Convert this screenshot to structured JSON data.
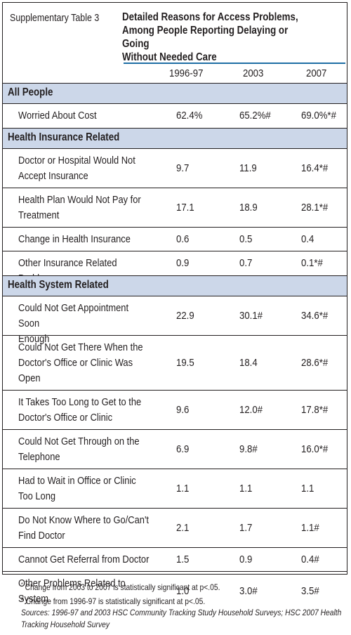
{
  "table_label": "Supplementary Table 3",
  "title_lines": [
    "Detailed Reasons for Access Problems,",
    "Among People Reporting Delaying or Going",
    "Without Needed Care"
  ],
  "columns": [
    "1996-97",
    "2003",
    "2007"
  ],
  "sections": [
    {
      "title": "All People",
      "rows": [
        {
          "lines": [
            "Worried About Cost"
          ],
          "values": [
            "62.4%",
            "65.2%#",
            "69.0%*#"
          ]
        }
      ]
    },
    {
      "title": "Health Insurance Related",
      "rows": [
        {
          "lines": [
            "Doctor or Hospital Would Not",
            "Accept Insurance"
          ],
          "values": [
            "9.7",
            "11.9",
            "16.4*#"
          ]
        },
        {
          "lines": [
            "Health Plan Would Not Pay for",
            "Treatment"
          ],
          "values": [
            "17.1",
            "18.9",
            "28.1*#"
          ]
        },
        {
          "lines": [
            "Change in Health Insurance"
          ],
          "values": [
            "0.6",
            "0.5",
            "0.4"
          ]
        },
        {
          "lines": [
            "Other Insurance Related Problem"
          ],
          "values": [
            "0.9",
            "0.7",
            "0.1*#"
          ]
        }
      ]
    },
    {
      "title": "Health System Related",
      "rows": [
        {
          "lines": [
            "Could Not Get Appointment Soon",
            "Enough"
          ],
          "values": [
            "22.9",
            "30.1#",
            "34.6*#"
          ]
        },
        {
          "lines": [
            "Could Not Get There When the",
            "Doctor's Office or Clinic Was",
            "Open"
          ],
          "values": [
            "19.5",
            "18.4",
            "28.6*#"
          ]
        },
        {
          "lines": [
            "It Takes Too Long to Get to the",
            "Doctor's Office or Clinic"
          ],
          "values": [
            "9.6",
            "12.0#",
            "17.8*#"
          ]
        },
        {
          "lines": [
            "Could Not Get Through on the",
            "Telephone"
          ],
          "values": [
            "6.9",
            "9.8#",
            "16.0*#"
          ]
        },
        {
          "lines": [
            "Had to Wait in Office or Clinic",
            "Too Long"
          ],
          "values": [
            "1.1",
            "1.1",
            "1.1"
          ]
        },
        {
          "lines": [
            "Do Not Know Where to Go/Can't",
            "Find Doctor"
          ],
          "values": [
            "2.1",
            "1.7",
            "1.1#"
          ]
        },
        {
          "lines": [
            "Cannot Get Referral from Doctor"
          ],
          "values": [
            "1.5",
            "0.9",
            "0.4#"
          ]
        },
        {
          "lines": [
            "Other Problems Related to",
            "System"
          ],
          "values": [
            "1.0",
            "3.0#",
            "3.5#"
          ]
        }
      ]
    }
  ],
  "notes": {
    "star_mark": "*",
    "star_text": "Change from 2003 to 2007 is statistically significant at p<.05.",
    "hash_mark": "#",
    "hash_text": "Change from 1996-97 is statistically significant at p<.05.",
    "sources_1": "Sources: 1996-97 and 2003 HSC Community Tracking Study Household Surveys; HSC 2007 Health",
    "sources_2": "Tracking Household Survey"
  }
}
